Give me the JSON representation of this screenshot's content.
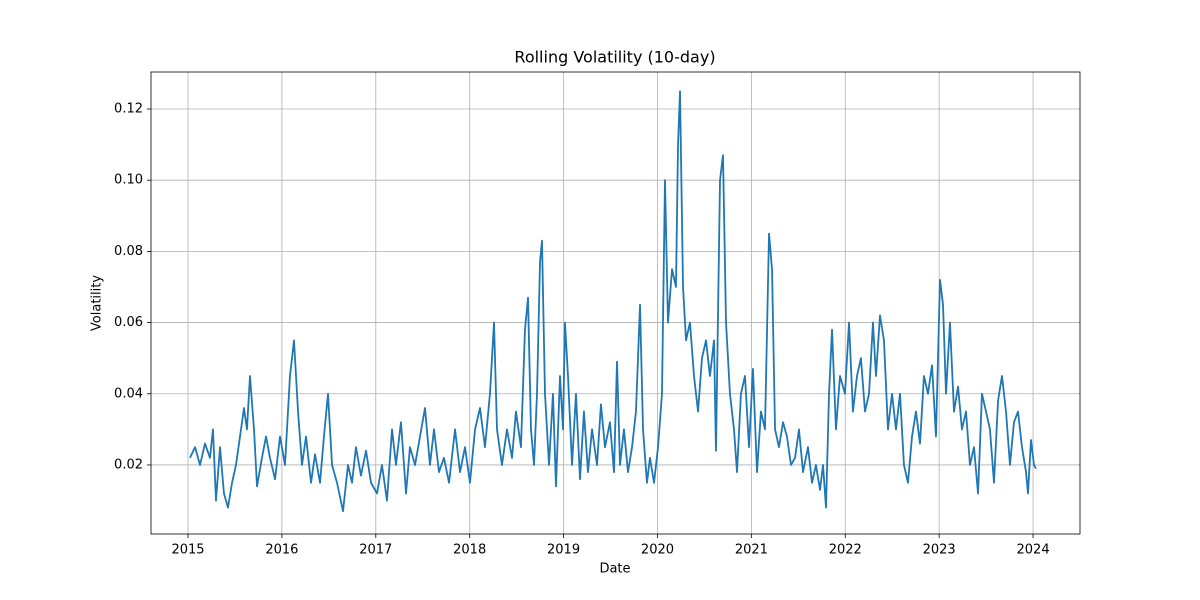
{
  "chart_data": {
    "type": "line",
    "title": "Rolling Volatility (10-day)",
    "x_label": "Date",
    "y_label": "Volatility",
    "xlim": [
      2014.606,
      2024.5
    ],
    "ylim": [
      0.0006,
      0.1304
    ],
    "xticks": [
      2015,
      2016,
      2017,
      2018,
      2019,
      2020,
      2021,
      2022,
      2023,
      2024
    ],
    "yticks": [
      0.02,
      0.04,
      0.06,
      0.08,
      {
        "value": 0.1,
        "label": "0.10"
      },
      0.12
    ],
    "grid": true,
    "series": [
      {
        "color": "#1f77b4",
        "x": [
          2015.021,
          2015.075,
          2015.128,
          2015.181,
          2015.234,
          2015.266,
          2015.298,
          2015.341,
          2015.383,
          2015.426,
          2015.469,
          2015.511,
          2015.554,
          2015.596,
          2015.628,
          2015.66,
          2015.703,
          2015.735,
          2015.788,
          2015.831,
          2015.873,
          2015.927,
          2015.98,
          2016.033,
          2016.086,
          2016.129,
          2016.172,
          2016.214,
          2016.257,
          2016.31,
          2016.353,
          2016.406,
          2016.448,
          2016.491,
          2016.534,
          2016.587,
          2016.651,
          2016.704,
          2016.747,
          2016.789,
          2016.842,
          2016.896,
          2016.949,
          2017.013,
          2017.066,
          2017.119,
          2017.173,
          2017.215,
          2017.268,
          2017.322,
          2017.364,
          2017.418,
          2017.471,
          2017.524,
          2017.577,
          2017.62,
          2017.673,
          2017.726,
          2017.78,
          2017.844,
          2017.897,
          2017.95,
          2018.003,
          2018.057,
          2018.11,
          2018.163,
          2018.216,
          2018.259,
          2018.291,
          2018.344,
          2018.397,
          2018.451,
          2018.493,
          2018.546,
          2018.589,
          2018.621,
          2018.653,
          2018.685,
          2018.717,
          2018.749,
          2018.77,
          2018.802,
          2018.845,
          2018.887,
          2018.919,
          2018.962,
          2018.994,
          2019.015,
          2019.047,
          2019.09,
          2019.132,
          2019.175,
          2019.217,
          2019.26,
          2019.303,
          2019.356,
          2019.398,
          2019.441,
          2019.494,
          2019.537,
          2019.569,
          2019.601,
          2019.643,
          2019.686,
          2019.729,
          2019.771,
          2019.814,
          2019.846,
          2019.888,
          2019.92,
          2019.963,
          2020.006,
          2020.048,
          2020.08,
          2020.112,
          2020.155,
          2020.197,
          2020.219,
          2020.24,
          2020.272,
          2020.304,
          2020.346,
          2020.389,
          2020.432,
          2020.474,
          2020.517,
          2020.559,
          2020.602,
          2020.623,
          2020.666,
          2020.698,
          2020.73,
          2020.772,
          2020.815,
          2020.847,
          2020.889,
          2020.932,
          2020.975,
          2021.017,
          2021.06,
          2021.102,
          2021.145,
          2021.188,
          2021.22,
          2021.252,
          2021.294,
          2021.337,
          2021.379,
          2021.422,
          2021.465,
          2021.507,
          2021.55,
          2021.603,
          2021.646,
          2021.688,
          2021.731,
          2021.763,
          2021.795,
          2021.827,
          2021.859,
          2021.901,
          2021.944,
          2021.997,
          2022.04,
          2022.082,
          2022.125,
          2022.167,
          2022.21,
          2022.253,
          2022.295,
          2022.327,
          2022.37,
          2022.412,
          2022.455,
          2022.498,
          2022.54,
          2022.583,
          2022.625,
          2022.668,
          2022.711,
          2022.753,
          2022.796,
          2022.838,
          2022.881,
          2022.924,
          2022.966,
          2023.009,
          2023.041,
          2023.073,
          2023.115,
          2023.158,
          2023.201,
          2023.243,
          2023.286,
          2023.328,
          2023.371,
          2023.414,
          2023.456,
          2023.499,
          2023.541,
          2023.584,
          2023.627,
          2023.669,
          2023.712,
          2023.754,
          2023.797,
          2023.84,
          2023.882,
          2023.925,
          2023.946,
          2023.978,
          2024.01,
          2024.031
        ],
        "values": [
          0.022,
          0.025,
          0.02,
          0.026,
          0.022,
          0.03,
          0.01,
          0.025,
          0.012,
          0.008,
          0.015,
          0.02,
          0.028,
          0.036,
          0.03,
          0.045,
          0.03,
          0.014,
          0.022,
          0.028,
          0.022,
          0.016,
          0.028,
          0.02,
          0.045,
          0.055,
          0.035,
          0.02,
          0.028,
          0.015,
          0.023,
          0.015,
          0.028,
          0.04,
          0.02,
          0.015,
          0.007,
          0.02,
          0.015,
          0.025,
          0.017,
          0.024,
          0.015,
          0.012,
          0.02,
          0.01,
          0.03,
          0.02,
          0.032,
          0.012,
          0.025,
          0.02,
          0.028,
          0.036,
          0.02,
          0.03,
          0.018,
          0.022,
          0.015,
          0.03,
          0.018,
          0.025,
          0.015,
          0.03,
          0.036,
          0.025,
          0.04,
          0.06,
          0.03,
          0.02,
          0.03,
          0.022,
          0.035,
          0.025,
          0.058,
          0.067,
          0.03,
          0.02,
          0.04,
          0.077,
          0.083,
          0.04,
          0.02,
          0.04,
          0.014,
          0.045,
          0.03,
          0.06,
          0.045,
          0.02,
          0.04,
          0.016,
          0.035,
          0.018,
          0.03,
          0.02,
          0.037,
          0.025,
          0.032,
          0.018,
          0.049,
          0.02,
          0.03,
          0.018,
          0.025,
          0.035,
          0.065,
          0.03,
          0.015,
          0.022,
          0.015,
          0.025,
          0.04,
          0.1,
          0.06,
          0.075,
          0.07,
          0.11,
          0.125,
          0.07,
          0.055,
          0.06,
          0.045,
          0.035,
          0.05,
          0.055,
          0.045,
          0.055,
          0.024,
          0.1,
          0.107,
          0.06,
          0.04,
          0.03,
          0.018,
          0.04,
          0.045,
          0.025,
          0.047,
          0.018,
          0.035,
          0.03,
          0.085,
          0.075,
          0.03,
          0.025,
          0.032,
          0.028,
          0.02,
          0.022,
          0.03,
          0.018,
          0.025,
          0.015,
          0.02,
          0.013,
          0.02,
          0.008,
          0.04,
          0.058,
          0.03,
          0.045,
          0.04,
          0.06,
          0.035,
          0.045,
          0.05,
          0.035,
          0.04,
          0.06,
          0.045,
          0.062,
          0.055,
          0.03,
          0.04,
          0.03,
          0.04,
          0.02,
          0.015,
          0.028,
          0.035,
          0.026,
          0.045,
          0.04,
          0.048,
          0.028,
          0.072,
          0.065,
          0.04,
          0.06,
          0.035,
          0.042,
          0.03,
          0.035,
          0.02,
          0.025,
          0.012,
          0.04,
          0.035,
          0.03,
          0.015,
          0.038,
          0.045,
          0.035,
          0.02,
          0.032,
          0.035,
          0.025,
          0.018,
          0.012,
          0.027,
          0.02,
          0.019
        ]
      }
    ]
  }
}
